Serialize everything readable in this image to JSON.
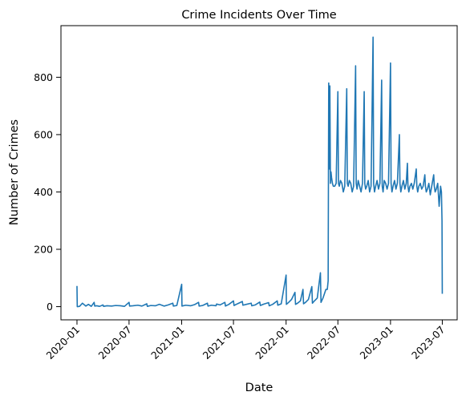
{
  "chart_data": {
    "type": "line",
    "title": "Crime Incidents Over Time",
    "xlabel": "Date",
    "ylabel": "Number of Crimes",
    "grid": false,
    "legend": "none",
    "line_color": "#1f77b4",
    "x_ticks": [
      "2020-01",
      "2020-07",
      "2021-01",
      "2021-07",
      "2022-01",
      "2022-07",
      "2023-01",
      "2023-07"
    ],
    "y_ticks": [
      0,
      200,
      400,
      600,
      800
    ],
    "xlim": [
      "2019-11-06",
      "2023-08-22"
    ],
    "ylim": [
      -46,
      980
    ],
    "series": [
      {
        "x": [
          "2020-01-01",
          "2020-01-02",
          "2020-01-10",
          "2020-01-20",
          "2020-02-01",
          "2020-02-10",
          "2020-02-20",
          "2020-03-01",
          "2020-03-03",
          "2020-03-10",
          "2020-03-20",
          "2020-04-01",
          "2020-04-03",
          "2020-04-15",
          "2020-05-01",
          "2020-05-15",
          "2020-06-01",
          "2020-06-15",
          "2020-07-01",
          "2020-07-03",
          "2020-07-15",
          "2020-08-01",
          "2020-08-15",
          "2020-09-01",
          "2020-09-03",
          "2020-09-15",
          "2020-10-01",
          "2020-10-15",
          "2020-11-01",
          "2020-11-15",
          "2020-12-01",
          "2020-12-03",
          "2020-12-15",
          "2021-01-01",
          "2021-01-02",
          "2021-01-15",
          "2021-02-01",
          "2021-02-15",
          "2021-03-01",
          "2021-03-03",
          "2021-03-15",
          "2021-04-01",
          "2021-04-03",
          "2021-04-15",
          "2021-05-01",
          "2021-05-03",
          "2021-05-15",
          "2021-06-01",
          "2021-06-03",
          "2021-06-15",
          "2021-07-01",
          "2021-07-03",
          "2021-07-15",
          "2021-08-01",
          "2021-08-03",
          "2021-08-15",
          "2021-09-01",
          "2021-09-03",
          "2021-09-15",
          "2021-10-01",
          "2021-10-03",
          "2021-10-15",
          "2021-11-01",
          "2021-11-03",
          "2021-11-15",
          "2021-12-01",
          "2021-12-03",
          "2021-12-15",
          "2022-01-01",
          "2022-01-02",
          "2022-01-10",
          "2022-01-20",
          "2022-02-01",
          "2022-02-03",
          "2022-02-10",
          "2022-02-20",
          "2022-03-01",
          "2022-03-03",
          "2022-03-10",
          "2022-03-20",
          "2022-04-01",
          "2022-04-03",
          "2022-04-10",
          "2022-04-20",
          "2022-05-01",
          "2022-05-03",
          "2022-05-10",
          "2022-05-15",
          "2022-05-20",
          "2022-05-25",
          "2022-05-28",
          "2022-05-30",
          "2022-06-01",
          "2022-06-03",
          "2022-06-05",
          "2022-06-07",
          "2022-06-09",
          "2022-06-12",
          "2022-06-15",
          "2022-06-20",
          "2022-06-25",
          "2022-07-01",
          "2022-07-03",
          "2022-07-06",
          "2022-07-10",
          "2022-07-15",
          "2022-07-20",
          "2022-07-25",
          "2022-08-01",
          "2022-08-03",
          "2022-08-06",
          "2022-08-10",
          "2022-08-15",
          "2022-08-20",
          "2022-08-25",
          "2022-09-01",
          "2022-09-03",
          "2022-09-06",
          "2022-09-10",
          "2022-09-15",
          "2022-09-20",
          "2022-09-25",
          "2022-10-01",
          "2022-10-03",
          "2022-10-06",
          "2022-10-10",
          "2022-10-15",
          "2022-10-20",
          "2022-10-25",
          "2022-11-01",
          "2022-11-03",
          "2022-11-06",
          "2022-11-10",
          "2022-11-15",
          "2022-11-20",
          "2022-11-25",
          "2022-12-01",
          "2022-12-03",
          "2022-12-06",
          "2022-12-10",
          "2022-12-15",
          "2022-12-20",
          "2022-12-25",
          "2023-01-01",
          "2023-01-03",
          "2023-01-06",
          "2023-01-10",
          "2023-01-15",
          "2023-01-20",
          "2023-01-25",
          "2023-02-01",
          "2023-02-03",
          "2023-02-06",
          "2023-02-10",
          "2023-02-15",
          "2023-02-20",
          "2023-02-25",
          "2023-03-01",
          "2023-03-03",
          "2023-03-06",
          "2023-03-10",
          "2023-03-15",
          "2023-03-20",
          "2023-03-25",
          "2023-04-01",
          "2023-04-03",
          "2023-04-06",
          "2023-04-10",
          "2023-04-15",
          "2023-04-20",
          "2023-04-25",
          "2023-05-01",
          "2023-05-03",
          "2023-05-06",
          "2023-05-10",
          "2023-05-15",
          "2023-05-20",
          "2023-05-25",
          "2023-06-01",
          "2023-06-03",
          "2023-06-06",
          "2023-06-10",
          "2023-06-15",
          "2023-06-20",
          "2023-06-25",
          "2023-06-28",
          "2023-06-30",
          "2023-07-01"
        ],
        "y": [
          72,
          0,
          1,
          12,
          2,
          8,
          1,
          15,
          2,
          3,
          1,
          6,
          1,
          3,
          2,
          4,
          3,
          1,
          15,
          2,
          3,
          5,
          2,
          10,
          1,
          4,
          3,
          8,
          2,
          6,
          12,
          2,
          4,
          78,
          2,
          5,
          3,
          7,
          15,
          2,
          4,
          12,
          2,
          5,
          3,
          9,
          6,
          15,
          2,
          8,
          20,
          4,
          10,
          18,
          5,
          8,
          12,
          3,
          6,
          16,
          4,
          9,
          14,
          3,
          8,
          20,
          5,
          10,
          110,
          8,
          15,
          25,
          50,
          8,
          12,
          20,
          60,
          10,
          15,
          25,
          70,
          12,
          20,
          30,
          118,
          15,
          30,
          45,
          60,
          60,
          90,
          780,
          480,
          770,
          430,
          470,
          450,
          430,
          420,
          420,
          430,
          750,
          430,
          420,
          440,
          430,
          400,
          420,
          760,
          430,
          420,
          440,
          430,
          400,
          420,
          840,
          430,
          410,
          440,
          420,
          400,
          430,
          750,
          430,
          410,
          420,
          440,
          400,
          420,
          940,
          430,
          400,
          420,
          440,
          410,
          430,
          790,
          420,
          400,
          440,
          430,
          410,
          430,
          850,
          430,
          400,
          420,
          440,
          410,
          430,
          600,
          430,
          400,
          420,
          440,
          410,
          430,
          500,
          420,
          400,
          420,
          430,
          410,
          430,
          480,
          420,
          400,
          420,
          430,
          410,
          420,
          460,
          420,
          400,
          410,
          430,
          390,
          420,
          460,
          420,
          400,
          410,
          430,
          350,
          420,
          400,
          300,
          45
        ]
      }
    ]
  }
}
